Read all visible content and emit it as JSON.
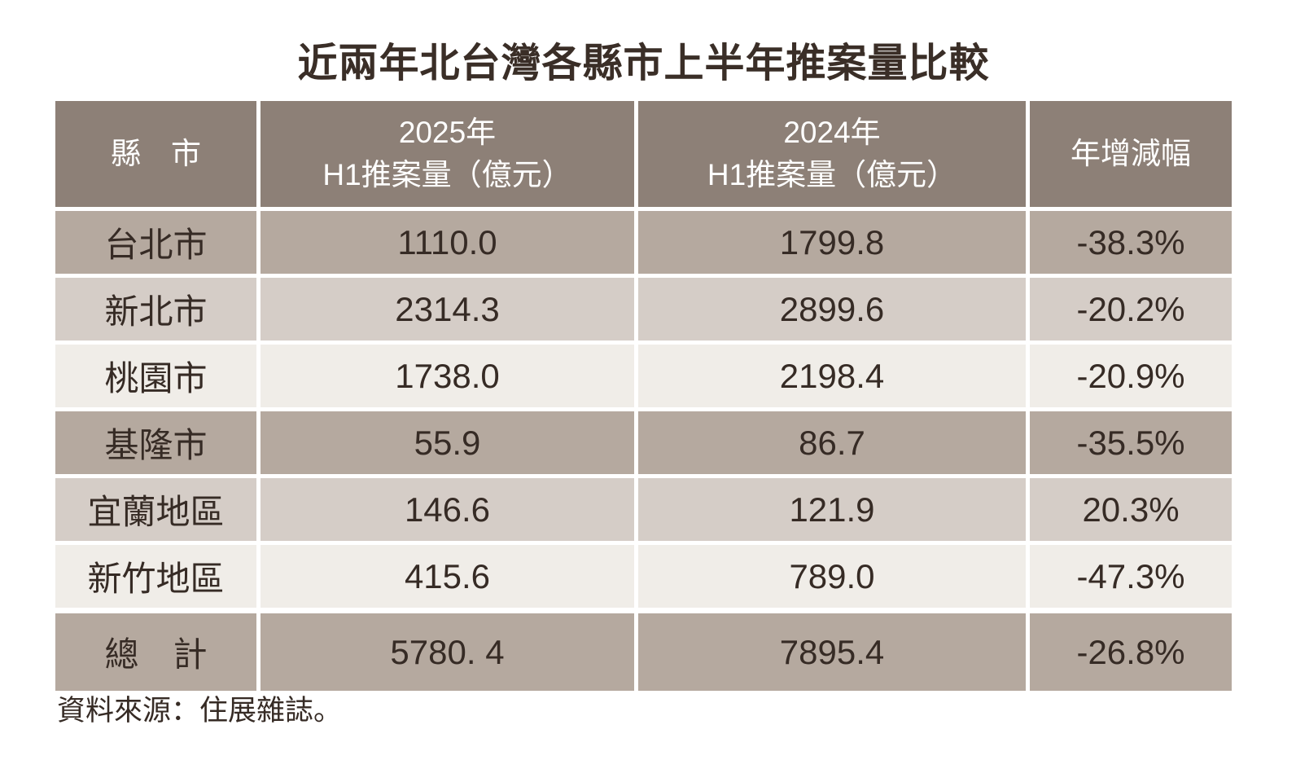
{
  "colors": {
    "background": "#ffffff",
    "header_bg": "#8d8077",
    "row_dark": "#b5a99f",
    "row_medium": "#d5cdc7",
    "row_light": "#f0ede8",
    "text": "#362b25",
    "header_text": "#ffffff"
  },
  "chart_data": {
    "type": "table",
    "title": "近兩年北台灣各縣市上半年推案量比較",
    "header": {
      "col1": "縣　市",
      "col2_line1": "2025年",
      "col2_line2": "H1推案量（億元）",
      "col3_line1": "2024年",
      "col3_line2": "H1推案量（億元）",
      "col4": "年增減幅"
    },
    "rows": [
      {
        "region": "台北市",
        "h1_2025": "1110.0",
        "h1_2024": "1799.8",
        "yoy": "-38.3%"
      },
      {
        "region": "新北市",
        "h1_2025": "2314.3",
        "h1_2024": "2899.6",
        "yoy": "-20.2%"
      },
      {
        "region": "桃園市",
        "h1_2025": "1738.0",
        "h1_2024": "2198.4",
        "yoy": "-20.9%"
      },
      {
        "region": "基隆市",
        "h1_2025": "55.9",
        "h1_2024": "86.7",
        "yoy": "-35.5%"
      },
      {
        "region": "宜蘭地區",
        "h1_2025": "146.6",
        "h1_2024": "121.9",
        "yoy": "20.3%"
      },
      {
        "region": "新竹地區",
        "h1_2025": "415.6",
        "h1_2024": "789.0",
        "yoy": "-47.3%"
      },
      {
        "region": "總　計",
        "h1_2025": "5780. 4",
        "h1_2024": "7895.4",
        "yoy": "-26.8%"
      }
    ],
    "source": "資料來源：住展雜誌。"
  }
}
